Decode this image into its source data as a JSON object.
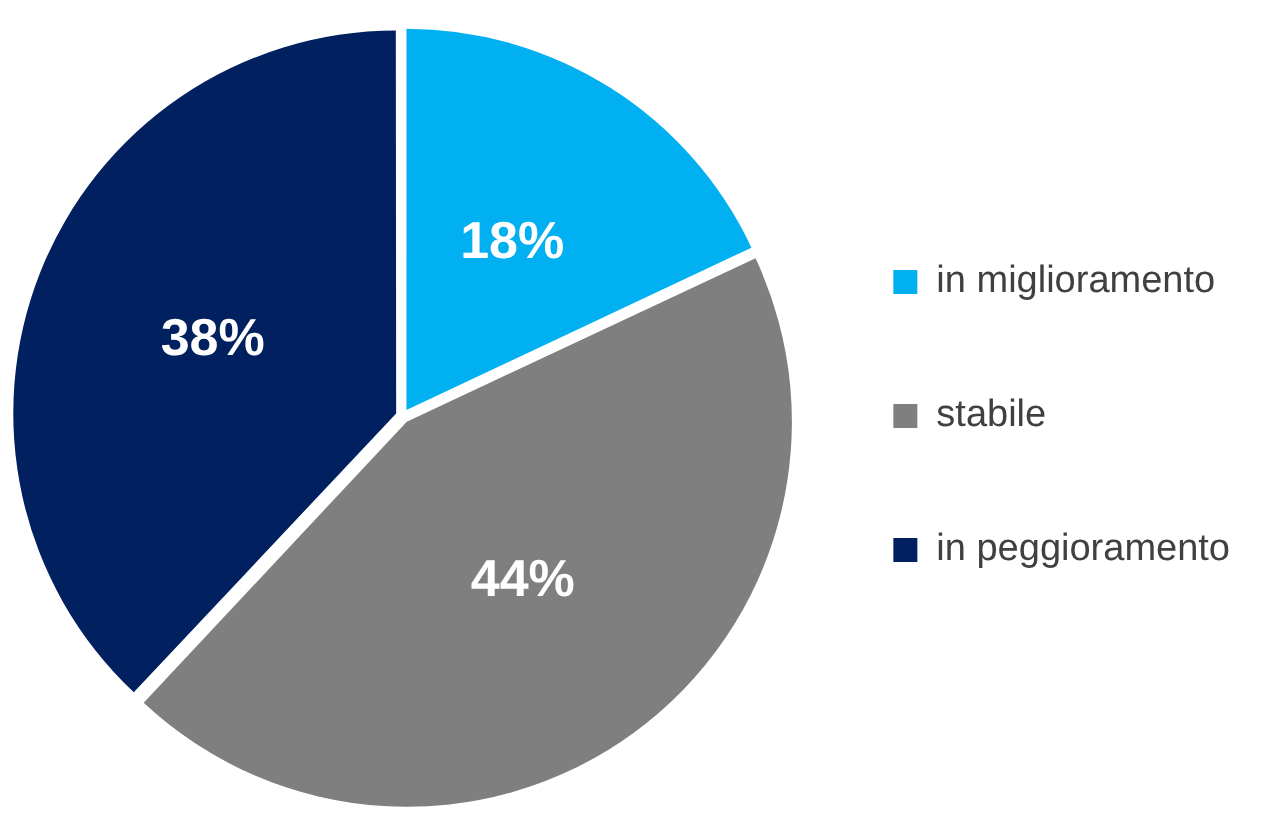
{
  "chart_data": {
    "type": "pie",
    "categories": [
      "in miglioramento",
      "stabile",
      "in peggioramento"
    ],
    "values": [
      18,
      44,
      38
    ],
    "colors": [
      "#00b0f0",
      "#7f7f7f",
      "#002060"
    ],
    "value_labels": [
      "18%",
      "44%",
      "38%"
    ],
    "legend": "right"
  }
}
